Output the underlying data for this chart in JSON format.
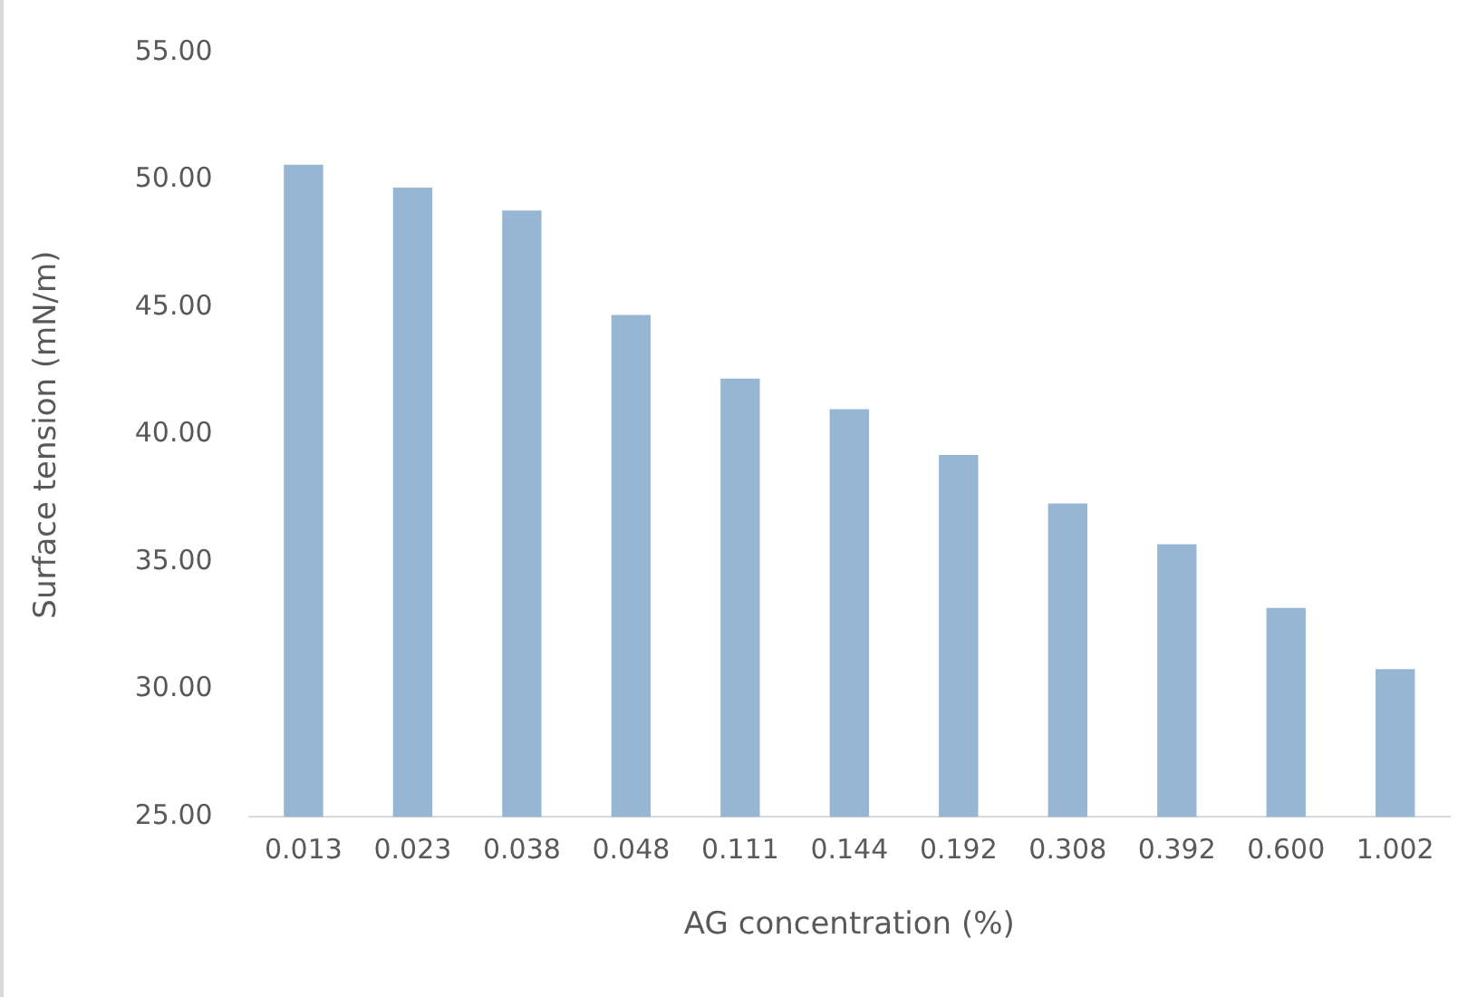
{
  "chart_data": {
    "type": "bar",
    "xlabel": "AG concentration (%)",
    "ylabel": "Surface tension (mN/m)",
    "categories": [
      "0.013",
      "0.023",
      "0.038",
      "0.048",
      "0.111",
      "0.144",
      "0.192",
      "0.308",
      "0.392",
      "0.600",
      "1.002"
    ],
    "values": [
      50.6,
      49.7,
      48.8,
      44.7,
      42.2,
      41.0,
      39.2,
      37.3,
      35.7,
      33.2,
      30.8
    ],
    "color": "#97b6d3",
    "ylim": [
      25,
      55
    ],
    "yticks": [
      {
        "value": 25,
        "label": "25.00"
      },
      {
        "value": 30,
        "label": "30.00"
      },
      {
        "value": 35,
        "label": "35.00"
      },
      {
        "value": 40,
        "label": "40.00"
      },
      {
        "value": 45,
        "label": "45.00"
      },
      {
        "value": 50,
        "label": "50.00"
      },
      {
        "value": 55,
        "label": "55.00"
      }
    ],
    "grid": false,
    "legend": false
  }
}
